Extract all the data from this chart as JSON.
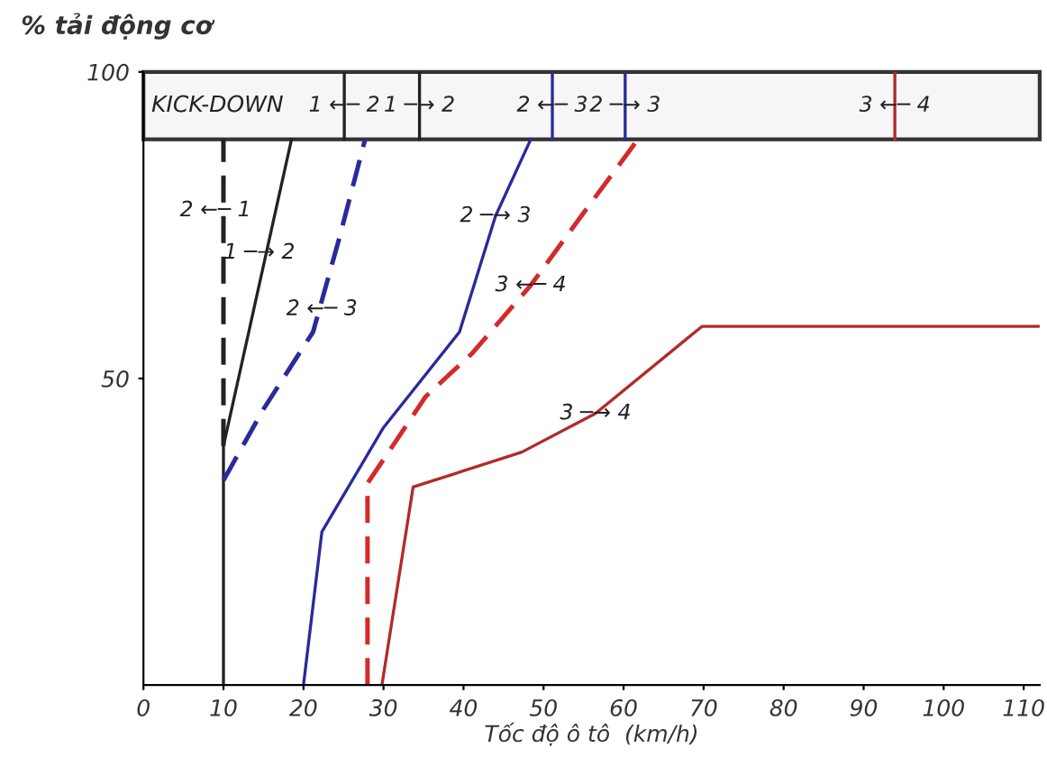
{
  "chart_data": {
    "type": "line",
    "xlabel": "Tốc độ ô tô  (km/h)",
    "ylabel": "% tải động cơ",
    "xlim": [
      0,
      112
    ],
    "ylim": [
      0,
      100
    ],
    "xticks": [
      0,
      10,
      20,
      30,
      40,
      50,
      60,
      70,
      80,
      90,
      100,
      110
    ],
    "yticks": [
      50,
      100
    ],
    "grid": false,
    "legend": false,
    "series": [
      {
        "color": "#222222",
        "line_style": "solid",
        "x": [
          10,
          10,
          18.5
        ],
        "values": [
          0,
          39,
          89
        ]
      },
      {
        "color": "#222222",
        "line_style": "dashed",
        "x": [
          10,
          10
        ],
        "values": [
          39,
          89
        ]
      },
      {
        "color": "#2a2a9a",
        "line_style": "dashed",
        "x": [
          10,
          15,
          21.2,
          24.5,
          27.7
        ],
        "values": [
          33.4,
          45,
          57.6,
          73,
          89
        ]
      },
      {
        "color": "#2a2a9a",
        "line_style": "solid",
        "x": [
          20,
          22.3,
          30,
          39.5,
          44,
          48.4
        ],
        "values": [
          0,
          25,
          42,
          57.6,
          76.5,
          89
        ]
      },
      {
        "color": "#d42a2a",
        "line_style": "dashed",
        "x": [
          28,
          28,
          35.3,
          41,
          48.4,
          55,
          61.8
        ],
        "values": [
          0,
          32.9,
          47.1,
          54,
          65.2,
          77,
          89
        ]
      },
      {
        "color": "#b22a2a",
        "line_style": "solid",
        "x": [
          29.8,
          33.7,
          47.3,
          56.5,
          69.8,
          112
        ],
        "values": [
          0,
          32.3,
          38,
          44.3,
          58.5,
          58.5
        ]
      },
      {
        "color": "#222222",
        "line_style": "solid",
        "x": [
          25.1,
          25.1
        ],
        "values": [
          89,
          100
        ]
      },
      {
        "color": "#222222",
        "line_style": "solid",
        "x": [
          34.5,
          34.5
        ],
        "values": [
          89,
          100
        ]
      },
      {
        "color": "#2a2a9a",
        "line_style": "solid",
        "x": [
          51.1,
          51.1
        ],
        "values": [
          89,
          100
        ]
      },
      {
        "color": "#2a2a9a",
        "line_style": "solid",
        "x": [
          60.2,
          60.2
        ],
        "values": [
          89,
          100
        ]
      },
      {
        "color": "#b22a2a",
        "line_style": "solid",
        "x": [
          93.9,
          93.9
        ],
        "values": [
          89,
          100
        ]
      }
    ],
    "bands": [
      {
        "axis": "y",
        "from": 89,
        "to": 100,
        "label": "KICK-DOWN",
        "color": "#f6f6f6"
      }
    ],
    "annotations": [
      {
        "text": "1 ←─ 2",
        "x": 25.1,
        "y": 94.5
      },
      {
        "text": "1 ─→ 2",
        "x": 34.5,
        "y": 94.5
      },
      {
        "text": "2 ←─ 3",
        "x": 51.1,
        "y": 94.5
      },
      {
        "text": "2 ─→ 3",
        "x": 60.2,
        "y": 94.5
      },
      {
        "text": "3 ←─ 4",
        "x": 93.9,
        "y": 94.5
      },
      {
        "text": "2 ←─ 1",
        "x": 9,
        "y": 77.4
      },
      {
        "text": "1 ─→ 2",
        "x": 14.5,
        "y": 70.5
      },
      {
        "text": "2 ←─ 3",
        "x": 22.3,
        "y": 61.3
      },
      {
        "text": "2 ─→ 3",
        "x": 44,
        "y": 76.5
      },
      {
        "text": "3 ←─ 4",
        "x": 48.4,
        "y": 65.2
      },
      {
        "text": "3 ─→ 4",
        "x": 56.5,
        "y": 44.3
      }
    ]
  }
}
